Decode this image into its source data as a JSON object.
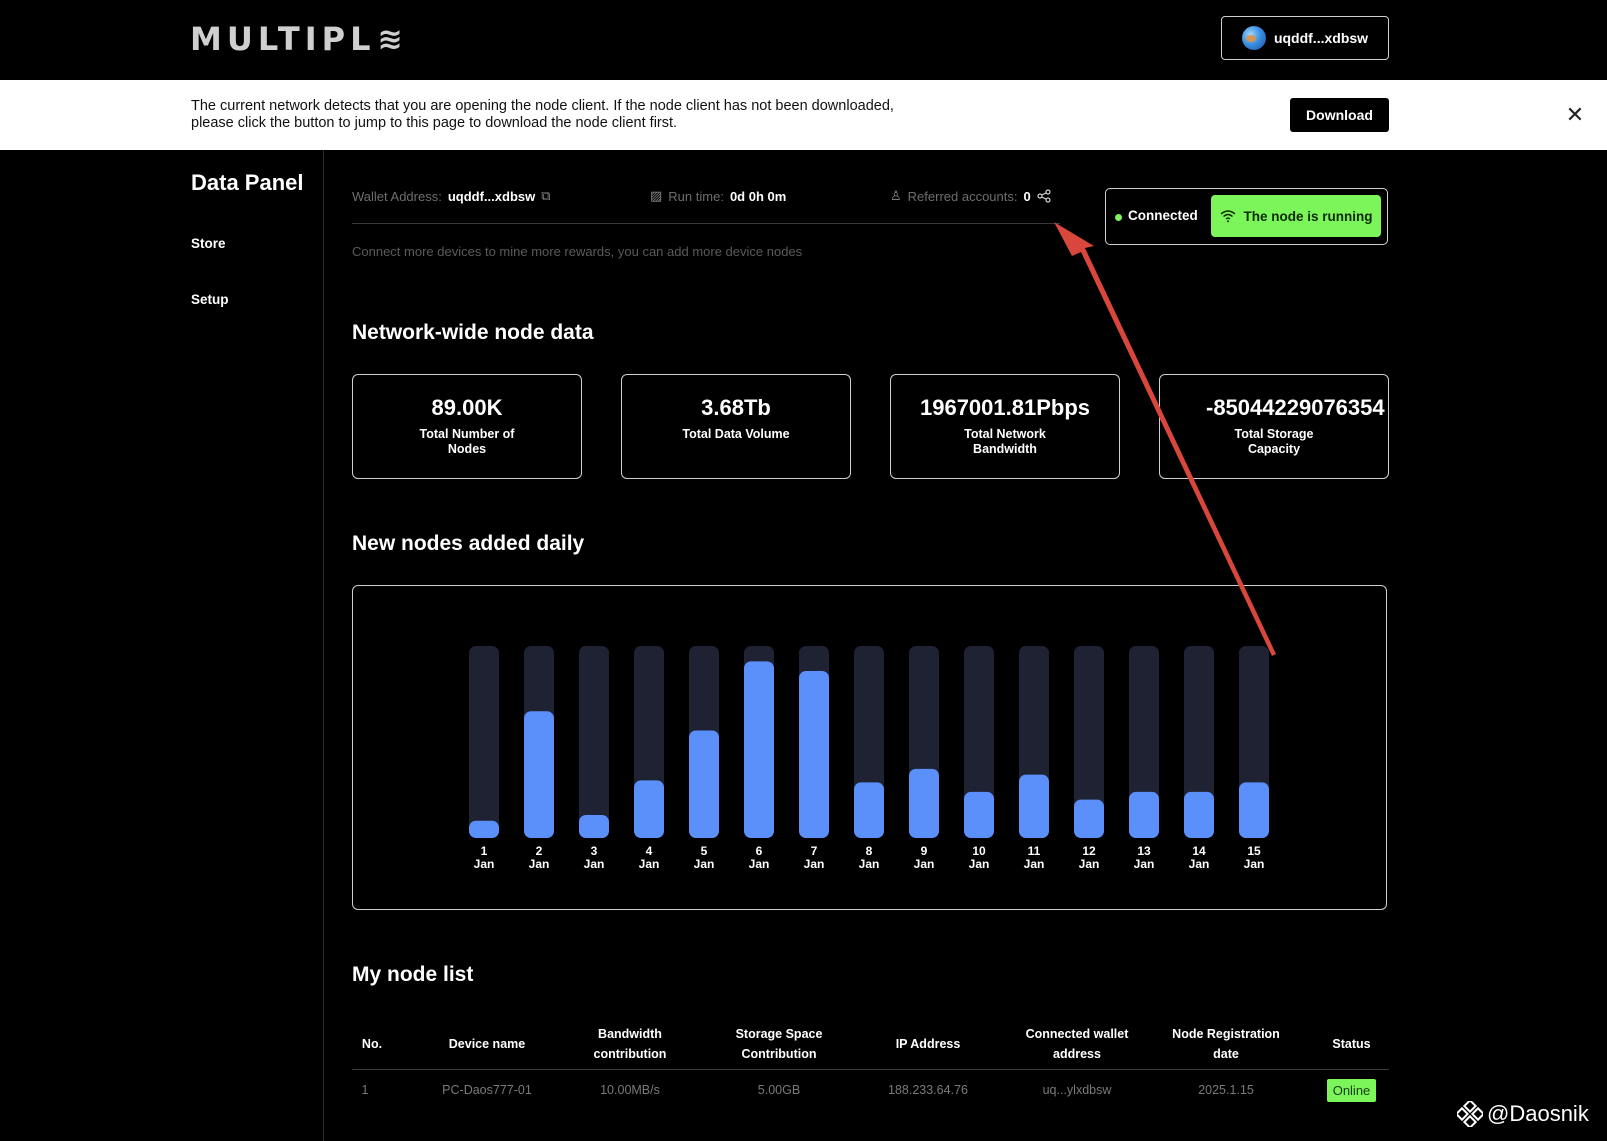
{
  "header": {
    "logo_text": "MULTIPL",
    "wallet_label": "uqddf...xdbsw"
  },
  "banner": {
    "text_line1": "The current network detects that you are opening the node client. If the node client has not been downloaded,",
    "text_line2": "please click the button to jump to this page to download the node client first.",
    "download_label": "Download"
  },
  "sidebar": {
    "title": "Data Panel",
    "items": [
      {
        "label": "Store"
      },
      {
        "label": "Setup"
      }
    ]
  },
  "info": {
    "wallet_label": "Wallet Address:",
    "wallet_value": "uqddf...xdbsw",
    "runtime_label": "Run time:",
    "runtime_value": "0d 0h 0m",
    "referred_label": "Referred accounts:",
    "referred_value": "0",
    "hint": "Connect more devices to mine more rewards, you can add more device nodes"
  },
  "status": {
    "connected_label": "Connected",
    "running_label": "The node is running",
    "accent_color": "#7cf55a"
  },
  "network": {
    "title": "Network-wide node data",
    "cards": [
      {
        "value": "89.00K",
        "label": "Total Number of Nodes"
      },
      {
        "value": "3.68Tb",
        "label": "Total Data Volume"
      },
      {
        "value": "1967001.81Pbps",
        "label": "Total Network Bandwidth"
      },
      {
        "value": "-85044229076354",
        "label": "Total Storage Capacity"
      }
    ]
  },
  "chart_section": {
    "title": "New nodes added daily"
  },
  "chart_data": {
    "type": "bar",
    "categories": [
      "1 Jan",
      "2 Jan",
      "3 Jan",
      "4 Jan",
      "5 Jan",
      "6 Jan",
      "7 Jan",
      "8 Jan",
      "9 Jan",
      "10 Jan",
      "11 Jan",
      "12 Jan",
      "13 Jan",
      "14 Jan",
      "15 Jan"
    ],
    "values": [
      9,
      66,
      12,
      30,
      56,
      92,
      87,
      29,
      36,
      24,
      33,
      20,
      24,
      24,
      29
    ],
    "ylim": [
      0,
      100
    ],
    "bar_color": "#5b8ff9",
    "track_color": "#1f2233"
  },
  "node_list": {
    "title": "My node list",
    "columns": [
      "No.",
      "Device name",
      "Bandwidth contribution",
      "Storage Space Contribution",
      "IP Address",
      "Connected wallet address",
      "Node Registration date",
      "Status"
    ],
    "rows": [
      {
        "no": "1",
        "device": "PC-Daos777-01",
        "bandwidth": "10.00MB/s",
        "storage": "5.00GB",
        "ip": "188.233.64.76",
        "wallet": "uq...ylxdbsw",
        "date": "2025.1.15",
        "status": "Online"
      }
    ]
  },
  "watermark": {
    "text": "@Daosnik"
  },
  "annotation_color": "#d9473c"
}
